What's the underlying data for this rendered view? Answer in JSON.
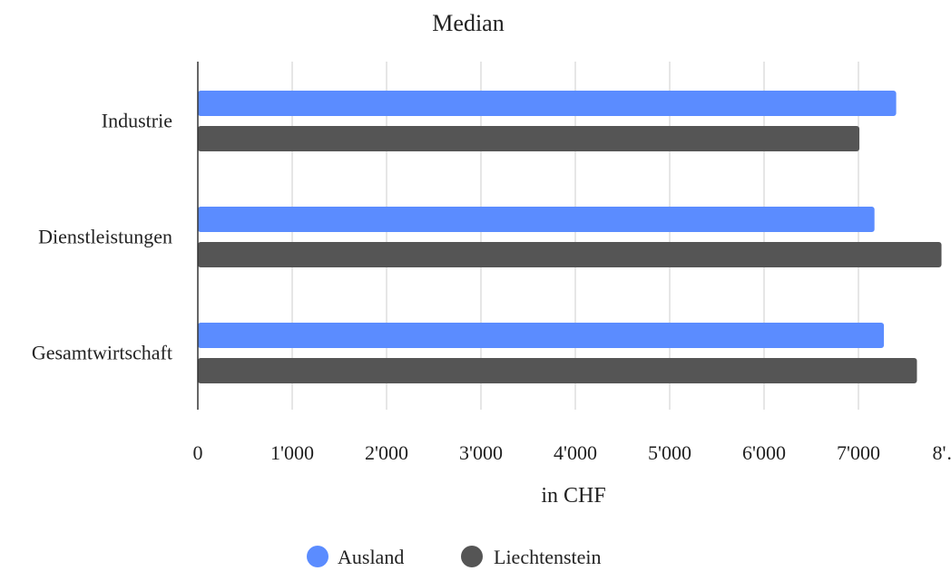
{
  "chart_data": {
    "type": "bar",
    "orientation": "horizontal",
    "title": "Median",
    "xlabel": "in CHF",
    "ylabel": "",
    "categories": [
      "Industrie",
      "Dienstleistungen",
      "Gesamtwirtschaft"
    ],
    "series": [
      {
        "name": "Ausland",
        "color": "#5b8cff",
        "values": [
          7400,
          7170,
          7270
        ]
      },
      {
        "name": "Liechtenstein",
        "color": "#555555",
        "values": [
          7010,
          7880,
          7620
        ]
      }
    ],
    "xlim": [
      0,
      8000
    ],
    "ticks": [
      "0",
      "1'000",
      "2'000",
      "3'000",
      "4'000",
      "5'000",
      "6'000",
      "7'000",
      "8'…"
    ],
    "grid": true,
    "legend_position": "bottom"
  }
}
